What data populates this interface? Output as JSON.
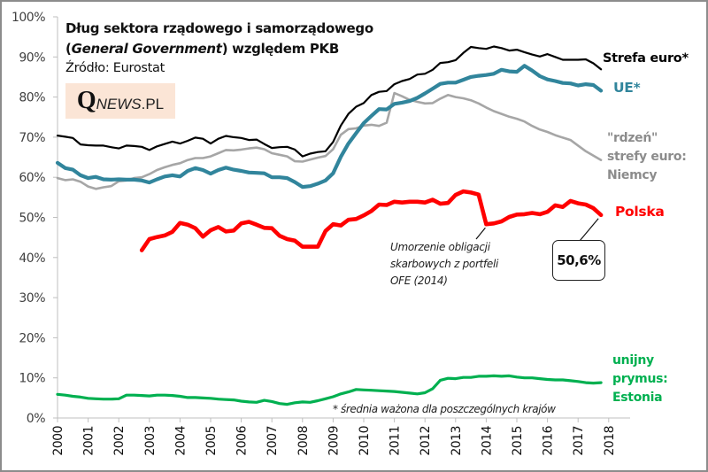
{
  "chart_data": {
    "type": "line",
    "title": "Dług sektora rządowego i samorządowego",
    "title_line2_prefix": "(",
    "title_line2_italic": "General Government",
    "title_line2_suffix": ") względem PKB",
    "subtitle": "Źródło: Eurostat",
    "logo": {
      "q": "Q",
      "news": "NEWS",
      "pl": ".PL"
    },
    "xlabel": "",
    "ylabel": "",
    "xlim": [
      2000,
      2018
    ],
    "ylim": [
      0,
      100
    ],
    "grid": false,
    "x_ticks": [
      "2000",
      "2001",
      "2002",
      "2003",
      "2004",
      "2005",
      "2006",
      "2007",
      "2008",
      "2009",
      "2010",
      "2011",
      "2012",
      "2013",
      "2014",
      "2015",
      "2016",
      "2017",
      "2018"
    ],
    "y_ticks": [
      "0%",
      "10%",
      "20%",
      "30%",
      "40%",
      "50%",
      "60%",
      "70%",
      "80%",
      "90%",
      "100%"
    ],
    "series": [
      {
        "name": "Strefa euro*",
        "label": "Strefa euro*",
        "color": "#000000",
        "x": [
          2000,
          2000.25,
          2000.5,
          2000.75,
          2001,
          2001.25,
          2001.5,
          2001.75,
          2002,
          2002.25,
          2002.5,
          2002.75,
          2003,
          2003.25,
          2003.5,
          2003.75,
          2004,
          2004.25,
          2004.5,
          2004.75,
          2005,
          2005.25,
          2005.5,
          2005.75,
          2006,
          2006.25,
          2006.5,
          2006.75,
          2007,
          2007.25,
          2007.5,
          2007.75,
          2008,
          2008.25,
          2008.5,
          2008.75,
          2009,
          2009.25,
          2009.5,
          2009.75,
          2010,
          2010.25,
          2010.5,
          2010.75,
          2011,
          2011.25,
          2011.5,
          2011.75,
          2012,
          2012.25,
          2012.5,
          2012.75,
          2013,
          2013.25,
          2013.5,
          2013.75,
          2014,
          2014.25,
          2014.5,
          2014.75,
          2015,
          2015.25,
          2015.5,
          2015.75,
          2016,
          2016.25,
          2016.5,
          2016.75,
          2017,
          2017.25,
          2017.5,
          2017.75
        ],
        "values": [
          70.4,
          70.1,
          69.8,
          68.2,
          68.0,
          67.9,
          67.9,
          67.5,
          67.2,
          67.9,
          67.8,
          67.6,
          66.8,
          67.7,
          68.3,
          68.9,
          68.4,
          69.1,
          69.9,
          69.6,
          68.4,
          69.6,
          70.3,
          70.0,
          69.8,
          69.3,
          69.4,
          68.3,
          67.3,
          67.5,
          67.6,
          66.9,
          65.2,
          65.9,
          66.3,
          66.5,
          68.8,
          72.9,
          75.8,
          77.6,
          78.5,
          80.5,
          81.3,
          81.5,
          83.2,
          84.0,
          84.5,
          85.6,
          85.8,
          86.8,
          88.5,
          88.7,
          89.2,
          91.0,
          92.5,
          92.2,
          92.0,
          92.6,
          92.2,
          91.6,
          91.8,
          91.2,
          90.6,
          90.1,
          90.7,
          90.0,
          89.3,
          89.3,
          89.3,
          89.4,
          88.4,
          86.9
        ]
      },
      {
        "name": "UE*",
        "label": "UE*",
        "color": "#31859c",
        "x": [
          2000,
          2000.25,
          2000.5,
          2000.75,
          2001,
          2001.25,
          2001.5,
          2001.75,
          2002,
          2002.25,
          2002.5,
          2002.75,
          2003,
          2003.25,
          2003.5,
          2003.75,
          2004,
          2004.25,
          2004.5,
          2004.75,
          2005,
          2005.25,
          2005.5,
          2005.75,
          2006,
          2006.25,
          2006.5,
          2006.75,
          2007,
          2007.25,
          2007.5,
          2007.75,
          2008,
          2008.25,
          2008.5,
          2008.75,
          2009,
          2009.25,
          2009.5,
          2009.75,
          2010,
          2010.25,
          2010.5,
          2010.75,
          2011,
          2011.25,
          2011.5,
          2011.75,
          2012,
          2012.25,
          2012.5,
          2012.75,
          2013,
          2013.25,
          2013.5,
          2013.75,
          2014,
          2014.25,
          2014.5,
          2014.75,
          2015,
          2015.25,
          2015.5,
          2015.75,
          2016,
          2016.25,
          2016.5,
          2016.75,
          2017,
          2017.25,
          2017.5,
          2017.75
        ],
        "values": [
          63.6,
          62.3,
          61.9,
          60.5,
          59.8,
          60.1,
          59.5,
          59.4,
          59.5,
          59.4,
          59.4,
          59.2,
          58.7,
          59.5,
          60.2,
          60.5,
          60.2,
          61.6,
          62.3,
          61.8,
          60.9,
          61.8,
          62.4,
          61.9,
          61.6,
          61.2,
          61.1,
          61.0,
          60.0,
          60.0,
          59.8,
          58.8,
          57.6,
          57.8,
          58.4,
          59.2,
          61.0,
          65.1,
          68.4,
          71.0,
          73.5,
          75.3,
          77.0,
          76.9,
          78.3,
          78.6,
          79.0,
          79.8,
          80.9,
          82.1,
          83.3,
          83.6,
          83.6,
          84.3,
          85.0,
          85.3,
          85.5,
          85.8,
          86.8,
          86.4,
          86.3,
          87.8,
          86.6,
          85.2,
          84.4,
          84.0,
          83.5,
          83.4,
          82.9,
          83.2,
          83.0,
          81.6
        ]
      },
      {
        "name": "\"rdzeń\" strefy euro: Niemcy",
        "label_lines": [
          "\"rdzeń\"",
          "strefy euro:",
          "Niemcy"
        ],
        "color": "#a6a6a6",
        "x": [
          2000,
          2000.25,
          2000.5,
          2000.75,
          2001,
          2001.25,
          2001.5,
          2001.75,
          2002,
          2002.25,
          2002.5,
          2002.75,
          2003,
          2003.25,
          2003.5,
          2003.75,
          2004,
          2004.25,
          2004.5,
          2004.75,
          2005,
          2005.25,
          2005.5,
          2005.75,
          2006,
          2006.25,
          2006.5,
          2006.75,
          2007,
          2007.25,
          2007.5,
          2007.75,
          2008,
          2008.25,
          2008.5,
          2008.75,
          2009,
          2009.25,
          2009.5,
          2009.75,
          2010,
          2010.25,
          2010.5,
          2010.75,
          2011,
          2011.25,
          2011.5,
          2011.75,
          2012,
          2012.25,
          2012.5,
          2012.75,
          2013,
          2013.25,
          2013.5,
          2013.75,
          2014,
          2014.25,
          2014.5,
          2014.75,
          2015,
          2015.25,
          2015.5,
          2015.75,
          2016,
          2016.25,
          2016.5,
          2016.75,
          2017,
          2017.25,
          2017.5,
          2017.75
        ],
        "values": [
          59.8,
          59.3,
          59.5,
          58.9,
          57.7,
          57.1,
          57.5,
          57.8,
          59.0,
          59.2,
          59.8,
          60.0,
          60.8,
          61.8,
          62.5,
          63.1,
          63.5,
          64.3,
          64.8,
          64.8,
          65.2,
          66.0,
          66.8,
          66.7,
          66.9,
          67.2,
          67.4,
          67.0,
          66.0,
          65.6,
          65.2,
          64.0,
          63.9,
          64.4,
          64.9,
          65.3,
          67.0,
          70.6,
          72.0,
          72.2,
          72.9,
          73.1,
          72.8,
          73.6,
          81.0,
          80.2,
          79.3,
          78.8,
          78.4,
          78.5,
          79.6,
          80.5,
          80.0,
          79.7,
          79.2,
          78.4,
          77.4,
          76.5,
          75.8,
          75.1,
          74.6,
          73.9,
          72.8,
          71.9,
          71.3,
          70.5,
          69.9,
          69.3,
          67.9,
          66.5,
          65.4,
          64.3
        ]
      },
      {
        "name": "Polska",
        "label": "Polska",
        "color": "#ff0000",
        "x": [
          2002.75,
          2003,
          2003.25,
          2003.5,
          2003.75,
          2004,
          2004.25,
          2004.5,
          2004.75,
          2005,
          2005.25,
          2005.5,
          2005.75,
          2006,
          2006.25,
          2006.5,
          2006.75,
          2007,
          2007.25,
          2007.5,
          2007.75,
          2008,
          2008.25,
          2008.5,
          2008.75,
          2009,
          2009.25,
          2009.5,
          2009.75,
          2010,
          2010.25,
          2010.5,
          2010.75,
          2011,
          2011.25,
          2011.5,
          2011.75,
          2012,
          2012.25,
          2012.5,
          2012.75,
          2013,
          2013.25,
          2013.5,
          2013.75,
          2014,
          2014.25,
          2014.5,
          2014.75,
          2015,
          2015.25,
          2015.5,
          2015.75,
          2016,
          2016.25,
          2016.5,
          2016.75,
          2017,
          2017.25,
          2017.5,
          2017.75
        ],
        "values": [
          41.8,
          44.6,
          45.1,
          45.5,
          46.4,
          48.6,
          48.2,
          47.3,
          45.2,
          46.8,
          47.6,
          46.5,
          46.7,
          48.5,
          48.9,
          48.2,
          47.4,
          47.3,
          45.4,
          44.6,
          44.2,
          42.7,
          42.7,
          42.7,
          46.6,
          48.3,
          48.0,
          49.4,
          49.6,
          50.5,
          51.6,
          53.2,
          53.1,
          53.9,
          53.7,
          53.9,
          53.9,
          53.7,
          54.4,
          53.4,
          53.6,
          55.6,
          56.5,
          56.2,
          55.7,
          48.3,
          48.5,
          49.0,
          50.1,
          50.7,
          50.8,
          51.1,
          50.8,
          51.4,
          53.0,
          52.6,
          54.1,
          53.5,
          53.2,
          52.3,
          50.6
        ]
      },
      {
        "name": "unijny prymus: Estonia",
        "label_lines": [
          "unijny",
          "prymus:",
          "Estonia"
        ],
        "color": "#00b050",
        "x": [
          2000,
          2000.25,
          2000.5,
          2000.75,
          2001,
          2001.25,
          2001.5,
          2001.75,
          2002,
          2002.25,
          2002.5,
          2002.75,
          2003,
          2003.25,
          2003.5,
          2003.75,
          2004,
          2004.25,
          2004.5,
          2004.75,
          2005,
          2005.25,
          2005.5,
          2005.75,
          2006,
          2006.25,
          2006.5,
          2006.75,
          2007,
          2007.25,
          2007.5,
          2007.75,
          2008,
          2008.25,
          2008.5,
          2008.75,
          2009,
          2009.25,
          2009.5,
          2009.75,
          2010,
          2010.25,
          2010.5,
          2010.75,
          2011,
          2011.25,
          2011.5,
          2011.75,
          2012,
          2012.25,
          2012.5,
          2012.75,
          2013,
          2013.25,
          2013.5,
          2013.75,
          2014,
          2014.25,
          2014.5,
          2014.75,
          2015,
          2015.25,
          2015.5,
          2015.75,
          2016,
          2016.25,
          2016.5,
          2016.75,
          2017,
          2017.25,
          2017.5,
          2017.75
        ],
        "values": [
          5.9,
          5.7,
          5.4,
          5.2,
          4.9,
          4.8,
          4.7,
          4.7,
          4.8,
          5.7,
          5.7,
          5.6,
          5.5,
          5.7,
          5.7,
          5.6,
          5.4,
          5.1,
          5.1,
          5.0,
          4.9,
          4.7,
          4.6,
          4.5,
          4.2,
          4.0,
          3.9,
          4.4,
          4.1,
          3.6,
          3.4,
          3.8,
          4.0,
          3.9,
          4.3,
          4.8,
          5.3,
          6.0,
          6.5,
          7.1,
          7.0,
          6.9,
          6.8,
          6.7,
          6.6,
          6.4,
          6.2,
          6.0,
          6.3,
          7.3,
          9.4,
          9.9,
          9.8,
          10.1,
          10.1,
          10.4,
          10.4,
          10.5,
          10.4,
          10.5,
          10.2,
          10.0,
          10.0,
          9.8,
          9.6,
          9.5,
          9.5,
          9.3,
          9.1,
          8.8,
          8.7,
          8.8
        ]
      }
    ],
    "annotations": {
      "polska_last_value": "50,6%",
      "ofe_note_lines": [
        "Umorzenie obligacji",
        "skarbowych z portfeli",
        "OFE (2014)"
      ],
      "footnote": "* średnia ważona dla poszczególnych krajów"
    }
  }
}
